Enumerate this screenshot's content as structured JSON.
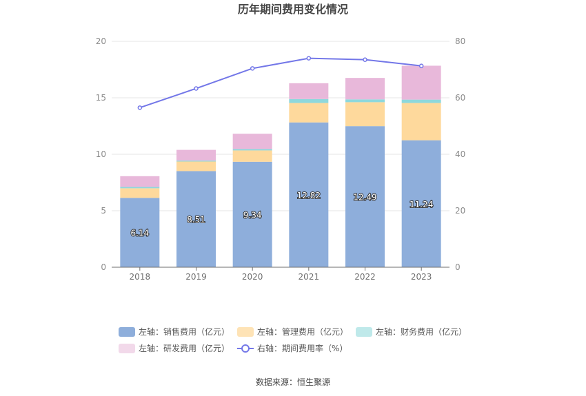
{
  "chart_data": {
    "type": "bar",
    "title": "历年期间费用变化情况",
    "categories": [
      "2018",
      "2019",
      "2020",
      "2021",
      "2022",
      "2023"
    ],
    "y_left": {
      "range": [
        0,
        20
      ],
      "ticks": [
        "0",
        "5",
        "10",
        "15",
        "20"
      ]
    },
    "y_right": {
      "range": [
        0,
        80
      ],
      "ticks": [
        "0",
        "20",
        "40",
        "60",
        "80"
      ]
    },
    "stacked": true,
    "series": [
      {
        "name": "左轴：销售费用（亿元）",
        "axis": "left",
        "color": "#8eaedb",
        "values": [
          6.14,
          8.51,
          9.34,
          12.82,
          12.49,
          11.24
        ],
        "labels": [
          "6.14",
          "8.51",
          "9.34",
          "12.82",
          "12.49",
          "11.24"
        ]
      },
      {
        "name": "左轴：管理费用（亿元）",
        "axis": "left",
        "color": "#fed99c",
        "values": [
          0.85,
          0.85,
          1.0,
          1.72,
          2.12,
          3.3
        ]
      },
      {
        "name": "左轴：财务费用（亿元）",
        "axis": "left",
        "color": "#8ed8dc",
        "values": [
          0.12,
          0.08,
          0.12,
          0.35,
          0.25,
          0.3
        ]
      },
      {
        "name": "左轴：研发费用（亿元）",
        "axis": "left",
        "color": "#e8b8da",
        "values": [
          0.95,
          0.95,
          1.36,
          1.4,
          1.9,
          3.0
        ]
      },
      {
        "name": "右轴：期间费用率（%）",
        "axis": "right",
        "type": "line",
        "color": "#7377e8",
        "values": [
          56.5,
          63.3,
          70.4,
          74.0,
          73.5,
          71.3
        ]
      }
    ],
    "grid": true,
    "legend_position": "bottom"
  },
  "source_text": "数据来源：恒生聚源"
}
